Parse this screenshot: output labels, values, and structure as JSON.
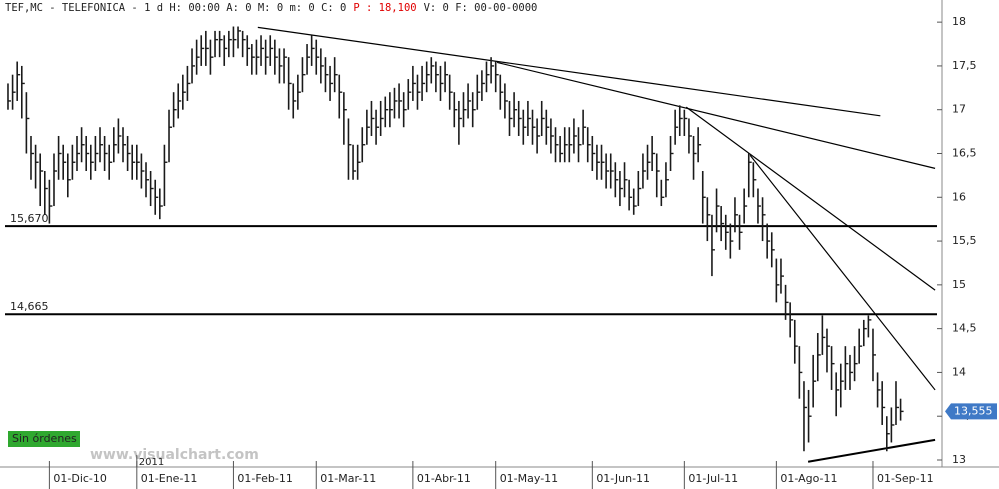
{
  "chart_data": {
    "type": "ohlc",
    "header": [
      "TEF,MC - TELEFONICA - 1 d H: 00:00 A: 0 M: 0 m: 0 C: 0",
      "P : 18,100",
      "V: 0 F: 00-00-0000"
    ],
    "color": "#1a1a1a",
    "high": [
      17.3,
      17.4,
      17.55,
      17.5,
      17.2,
      16.7,
      16.6,
      16.5,
      16.3,
      16.2,
      16.5,
      16.7,
      16.6,
      16.5,
      16.6,
      16.7,
      16.8,
      16.7,
      16.6,
      16.7,
      16.8,
      16.7,
      16.6,
      16.8,
      16.9,
      16.8,
      16.7,
      16.6,
      16.6,
      16.5,
      16.4,
      16.3,
      16.2,
      16.1,
      16.6,
      17.0,
      17.2,
      17.3,
      17.4,
      17.5,
      17.7,
      17.8,
      17.85,
      17.9,
      17.8,
      17.9,
      17.9,
      17.85,
      17.9,
      17.95,
      17.95,
      17.9,
      17.85,
      17.75,
      17.8,
      17.85,
      17.8,
      17.85,
      17.8,
      17.7,
      17.7,
      17.6,
      17.3,
      17.4,
      17.6,
      17.75,
      17.85,
      17.8,
      17.7,
      17.6,
      17.5,
      17.6,
      17.4,
      17.2,
      16.9,
      16.6,
      16.6,
      16.8,
      17.0,
      17.1,
      17.0,
      17.1,
      17.15,
      17.2,
      17.25,
      17.3,
      17.2,
      17.35,
      17.5,
      17.4,
      17.5,
      17.55,
      17.6,
      17.55,
      17.5,
      17.55,
      17.4,
      17.2,
      17.1,
      17.2,
      17.3,
      17.2,
      17.4,
      17.45,
      17.55,
      17.6,
      17.55,
      17.4,
      17.3,
      17.1,
      17.2,
      17.1,
      17.0,
      17.1,
      17.0,
      16.9,
      17.1,
      17.0,
      16.9,
      16.8,
      16.7,
      16.8,
      16.8,
      16.9,
      16.8,
      17.0,
      16.8,
      16.7,
      16.6,
      16.6,
      16.5,
      16.5,
      16.4,
      16.3,
      16.4,
      16.2,
      16.1,
      16.3,
      16.5,
      16.6,
      16.7,
      16.5,
      16.2,
      16.4,
      16.7,
      17.0,
      17.05,
      17.0,
      16.9,
      16.7,
      16.8,
      16.3,
      16.0,
      15.8,
      16.1,
      15.9,
      15.8,
      15.7,
      16.0,
      15.8,
      16.1,
      16.5,
      16.4,
      16.1,
      16.0,
      15.7,
      15.6,
      15.3,
      15.3,
      15.0,
      14.8,
      14.6,
      14.3,
      13.9,
      13.8,
      14.2,
      14.45,
      14.65,
      14.5,
      14.3,
      14.0,
      14.1,
      14.3,
      14.2,
      14.3,
      14.5,
      14.6,
      14.65,
      14.5,
      14.0,
      13.9,
      13.5,
      13.6,
      13.9,
      13.7
    ],
    "low": [
      17.0,
      17.0,
      17.1,
      16.9,
      16.5,
      16.2,
      16.1,
      15.9,
      15.8,
      15.7,
      15.9,
      16.2,
      16.2,
      16.0,
      16.2,
      16.3,
      16.4,
      16.3,
      16.2,
      16.3,
      16.4,
      16.3,
      16.2,
      16.4,
      16.5,
      16.4,
      16.3,
      16.2,
      16.2,
      16.1,
      16.0,
      15.9,
      15.8,
      15.75,
      15.9,
      16.4,
      16.8,
      16.9,
      17.0,
      17.1,
      17.3,
      17.4,
      17.5,
      17.5,
      17.4,
      17.6,
      17.6,
      17.5,
      17.6,
      17.6,
      17.7,
      17.6,
      17.5,
      17.4,
      17.4,
      17.5,
      17.4,
      17.5,
      17.4,
      17.3,
      17.3,
      17.0,
      16.9,
      17.0,
      17.2,
      17.4,
      17.5,
      17.4,
      17.3,
      17.2,
      17.1,
      17.2,
      16.9,
      16.6,
      16.2,
      16.2,
      16.2,
      16.4,
      16.6,
      16.7,
      16.6,
      16.7,
      16.8,
      16.8,
      16.9,
      16.9,
      16.8,
      17.0,
      17.1,
      17.0,
      17.1,
      17.2,
      17.3,
      17.2,
      17.1,
      17.2,
      17.0,
      16.8,
      16.6,
      16.8,
      16.9,
      16.8,
      17.0,
      17.1,
      17.2,
      17.3,
      17.2,
      17.0,
      16.9,
      16.7,
      16.8,
      16.7,
      16.6,
      16.7,
      16.6,
      16.5,
      16.7,
      16.6,
      16.5,
      16.4,
      16.4,
      16.4,
      16.4,
      16.5,
      16.4,
      16.6,
      16.4,
      16.3,
      16.2,
      16.2,
      16.1,
      16.1,
      16.0,
      15.9,
      16.0,
      15.85,
      15.8,
      15.9,
      16.1,
      16.2,
      16.3,
      16.0,
      15.9,
      16.0,
      16.3,
      16.6,
      16.7,
      16.7,
      16.5,
      16.2,
      16.4,
      15.7,
      15.5,
      15.1,
      15.6,
      15.5,
      15.4,
      15.3,
      15.6,
      15.4,
      15.7,
      16.0,
      16.0,
      15.7,
      15.5,
      15.3,
      15.2,
      14.8,
      14.9,
      14.6,
      14.4,
      14.1,
      13.7,
      13.1,
      13.2,
      13.6,
      13.9,
      14.2,
      14.0,
      13.8,
      13.5,
      13.6,
      13.8,
      13.8,
      13.9,
      14.1,
      14.3,
      14.4,
      13.9,
      13.6,
      13.4,
      13.1,
      13.2,
      13.4,
      13.45
    ],
    "close": [
      17.1,
      17.2,
      17.4,
      17.3,
      16.9,
      16.5,
      16.4,
      16.3,
      16.1,
      15.9,
      16.3,
      16.5,
      16.4,
      16.2,
      16.4,
      16.5,
      16.6,
      16.5,
      16.4,
      16.5,
      16.6,
      16.5,
      16.4,
      16.6,
      16.7,
      16.6,
      16.5,
      16.4,
      16.4,
      16.3,
      16.2,
      16.1,
      16.0,
      15.9,
      16.4,
      16.8,
      17.0,
      17.1,
      17.2,
      17.3,
      17.5,
      17.6,
      17.7,
      17.7,
      17.6,
      17.8,
      17.8,
      17.7,
      17.8,
      17.8,
      17.9,
      17.8,
      17.7,
      17.6,
      17.6,
      17.7,
      17.6,
      17.7,
      17.6,
      17.5,
      17.6,
      17.3,
      17.1,
      17.2,
      17.4,
      17.6,
      17.7,
      17.6,
      17.5,
      17.4,
      17.3,
      17.4,
      17.2,
      17.0,
      16.6,
      16.3,
      16.4,
      16.6,
      16.8,
      16.9,
      16.8,
      16.9,
      17.0,
      17.0,
      17.1,
      17.1,
      17.0,
      17.2,
      17.3,
      17.2,
      17.3,
      17.4,
      17.5,
      17.4,
      17.3,
      17.4,
      17.2,
      17.0,
      16.9,
      17.0,
      17.1,
      17.0,
      17.2,
      17.3,
      17.4,
      17.5,
      17.4,
      17.2,
      17.1,
      16.9,
      17.0,
      16.9,
      16.8,
      16.9,
      16.8,
      16.7,
      16.9,
      16.8,
      16.7,
      16.6,
      16.5,
      16.6,
      16.6,
      16.7,
      16.6,
      16.8,
      16.6,
      16.5,
      16.4,
      16.4,
      16.3,
      16.3,
      16.2,
      16.1,
      16.2,
      16.0,
      15.9,
      16.1,
      16.3,
      16.4,
      16.5,
      16.3,
      16.0,
      16.2,
      16.5,
      16.8,
      16.9,
      16.9,
      16.7,
      16.5,
      16.6,
      16.0,
      15.8,
      15.4,
      15.9,
      15.7,
      15.6,
      15.5,
      15.8,
      15.6,
      15.9,
      16.4,
      16.2,
      15.9,
      15.8,
      15.5,
      15.4,
      15.0,
      15.1,
      14.8,
      14.6,
      14.3,
      14.0,
      13.6,
      13.5,
      13.9,
      14.2,
      14.4,
      14.3,
      14.1,
      13.8,
      13.9,
      14.1,
      14.0,
      14.1,
      14.3,
      14.5,
      14.6,
      14.2,
      13.8,
      13.6,
      13.3,
      13.4,
      13.6,
      13.555
    ],
    "xlim": [
      -1.3,
      203
    ],
    "ylim": [
      12.92,
      18.23
    ],
    "xticks": [
      {
        "value": 9,
        "label": "01-Dic-10"
      },
      {
        "value": 28,
        "label": "01-Ene-11"
      },
      {
        "value": 49,
        "label": "01-Feb-11"
      },
      {
        "value": 67,
        "label": "01-Mar-11"
      },
      {
        "value": 88,
        "label": "01-Abr-11"
      },
      {
        "value": 106,
        "label": "01-May-11"
      },
      {
        "value": 127,
        "label": "01-Jun-11"
      },
      {
        "value": 147,
        "label": "01-Jul-11"
      },
      {
        "value": 167,
        "label": "01-Ago-11"
      },
      {
        "value": 188,
        "label": "01-Sep-11"
      }
    ],
    "yticks": [
      13,
      {
        "value": 13.5,
        "label": "13,5"
      },
      14,
      {
        "value": 14.5,
        "label": "14,5"
      },
      15,
      {
        "value": 15.5,
        "label": "15,5"
      },
      16,
      {
        "value": 16.5,
        "label": "16,5"
      },
      17,
      {
        "value": 17.5,
        "label": "17,5"
      },
      18
    ],
    "year_label": {
      "value": 28,
      "label": "2011"
    },
    "levels": [
      {
        "value": 15.67,
        "label": "15,670"
      },
      {
        "value": 14.665,
        "label": "14,665"
      }
    ],
    "trendlines": [
      [
        54.3,
        17.94,
        189.6,
        16.93
      ],
      [
        106.3,
        17.54,
        201.5,
        16.33
      ],
      [
        147.4,
        17.03,
        201.5,
        14.94
      ],
      [
        161.3,
        16.48,
        201.5,
        13.8
      ],
      [
        173.9,
        12.98,
        201.5,
        13.23
      ]
    ],
    "last_price": {
      "value": 13.555,
      "label": "13,555"
    },
    "badge": "Sin órdenes",
    "watermark": "www.visualchart.com",
    "grid": false
  }
}
